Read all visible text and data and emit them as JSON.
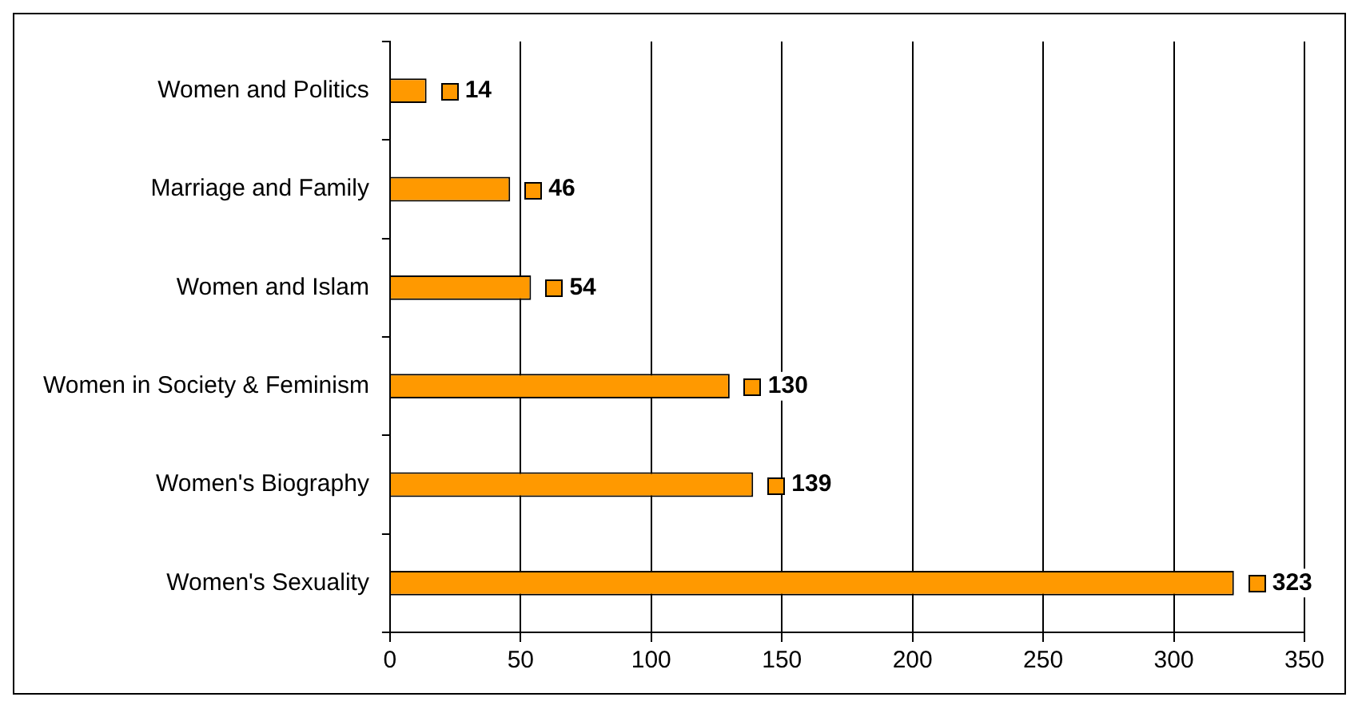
{
  "chart_data": {
    "type": "bar",
    "orientation": "horizontal",
    "categories": [
      "Women and Politics",
      "Marriage and Family",
      "Women and Islam",
      "Women in Society & Feminism",
      "Women's Biography",
      "Women's Sexuality"
    ],
    "values": [
      14,
      46,
      54,
      130,
      139,
      323
    ],
    "color": "#ff9900",
    "xlim": [
      0,
      350
    ],
    "xticks": [
      0,
      50,
      100,
      150,
      200,
      250,
      300,
      350
    ],
    "grid": "x",
    "legend": false,
    "data_labels": true
  }
}
